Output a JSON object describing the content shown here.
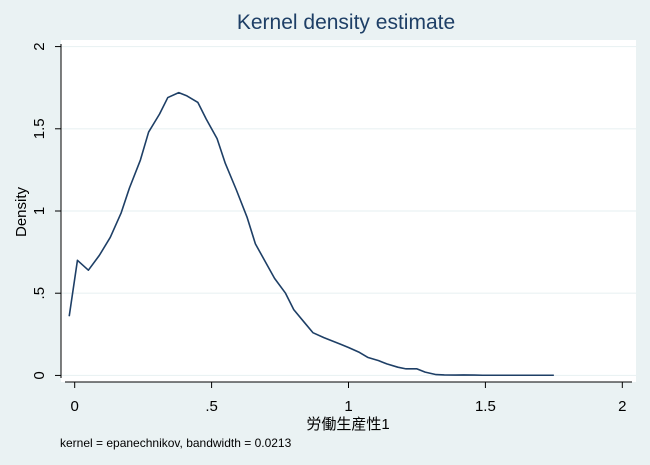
{
  "chart_data": {
    "type": "line",
    "title": "Kernel density estimate",
    "xlabel": "労働生産性1",
    "ylabel": "Density",
    "note": "kernel = epanechnikov, bandwidth = 0.0213",
    "xlim": [
      -0.05,
      2.05
    ],
    "ylim": [
      -0.04,
      2.04
    ],
    "x_ticks": [
      0,
      0.5,
      1,
      1.5,
      2
    ],
    "x_tick_labels": [
      "0",
      ".5",
      "1",
      "1.5",
      "2"
    ],
    "y_ticks": [
      0,
      0.5,
      1,
      1.5,
      2
    ],
    "y_tick_labels": [
      "0",
      ".5",
      "1",
      "1.5",
      "2"
    ],
    "grid": true,
    "legend": "none",
    "colors": {
      "background": "#eaf2f3",
      "plot_background": "#ffffff",
      "line": "#1e3f66",
      "title": "#1e3f66",
      "grid": "#eaf2f3"
    },
    "series": [
      {
        "x": [
          -0.02,
          0.01,
          0.05,
          0.09,
          0.13,
          0.17,
          0.2,
          0.24,
          0.27,
          0.31,
          0.34,
          0.38,
          0.41,
          0.45,
          0.48,
          0.52,
          0.55,
          0.59,
          0.63,
          0.66,
          0.7,
          0.73,
          0.77,
          0.8,
          0.84,
          0.87,
          0.91,
          0.94,
          0.97,
          1.0,
          1.04,
          1.07,
          1.11,
          1.14,
          1.18,
          1.21,
          1.25,
          1.28,
          1.32,
          1.35,
          1.39,
          1.42,
          1.46,
          1.49,
          1.53,
          1.56,
          1.6,
          1.63,
          1.67,
          1.7,
          1.75
        ],
        "y": [
          0.36,
          0.7,
          0.64,
          0.73,
          0.84,
          0.99,
          1.14,
          1.31,
          1.48,
          1.59,
          1.69,
          1.72,
          1.7,
          1.66,
          1.56,
          1.44,
          1.29,
          1.13,
          0.96,
          0.8,
          0.68,
          0.59,
          0.5,
          0.4,
          0.32,
          0.26,
          0.23,
          0.21,
          0.19,
          0.17,
          0.14,
          0.11,
          0.09,
          0.07,
          0.05,
          0.04,
          0.04,
          0.02,
          0.005,
          0.003,
          0.002,
          0.003,
          0.002,
          0.001,
          0.001,
          0.001,
          0.001,
          0.001,
          0.001,
          0.001,
          0.001
        ]
      }
    ]
  }
}
